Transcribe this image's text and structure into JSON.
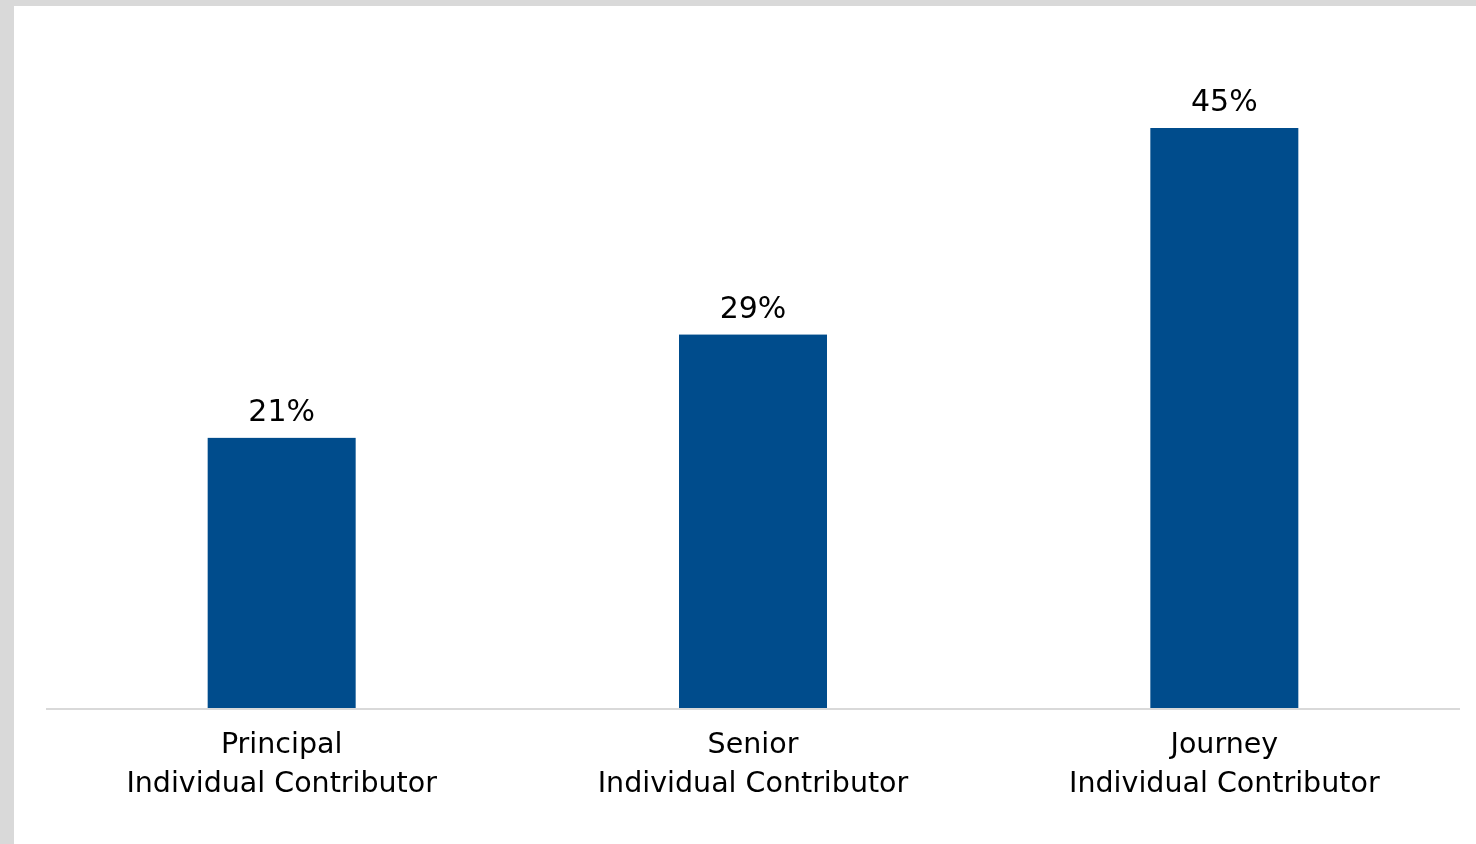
{
  "chart_data": {
    "type": "bar",
    "categories": [
      "Principal\nIndividual Contributor",
      "Senior\nIndividual Contributor",
      "Journey\nIndividual Contributor"
    ],
    "values": [
      21,
      29,
      45
    ],
    "color": "#004c8c",
    "value_labels": [
      "21%",
      "29%",
      "45%"
    ]
  }
}
